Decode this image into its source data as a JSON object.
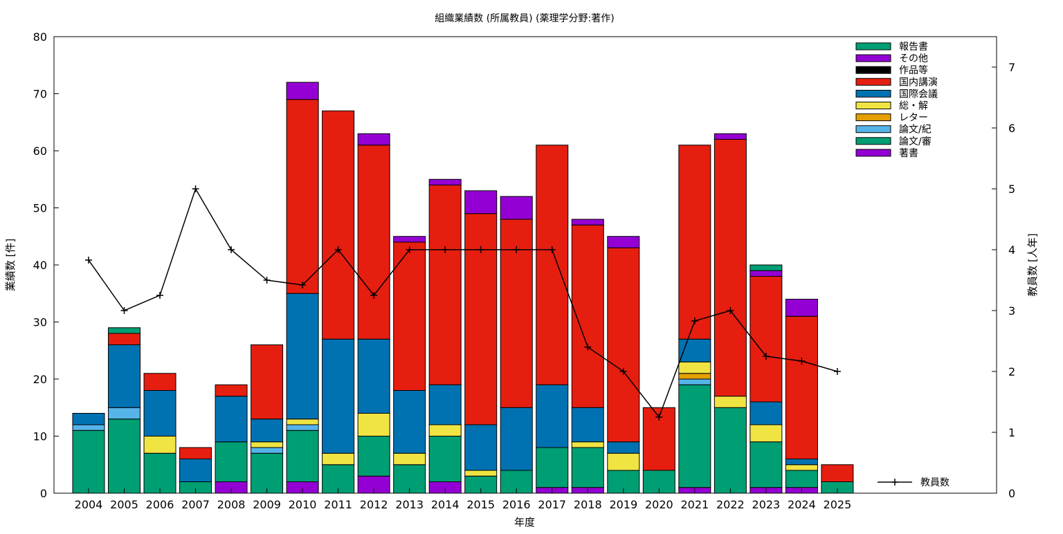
{
  "chart_data": {
    "type": "bar",
    "stacked": true,
    "title": "組織業績数 (所属教員) (薬理学分野:著作)",
    "xlabel": "年度",
    "ylabel": "業績数 [件]",
    "y2label": "教員数 [人年]",
    "ylim": [
      0,
      80
    ],
    "y2lim": [
      0,
      7.5
    ],
    "yticks": [
      0,
      10,
      20,
      30,
      40,
      50,
      60,
      70,
      80
    ],
    "y2ticks": [
      0,
      1,
      2,
      3,
      4,
      5,
      6,
      7
    ],
    "grid": false,
    "legend_position": "top-right",
    "categories": [
      "2004",
      "2005",
      "2006",
      "2007",
      "2008",
      "2009",
      "2010",
      "2011",
      "2012",
      "2013",
      "2014",
      "2015",
      "2016",
      "2017",
      "2018",
      "2019",
      "2020",
      "2021",
      "2022",
      "2023",
      "2024",
      "2025"
    ],
    "series": [
      {
        "name": "著書",
        "color": "#9400d3",
        "values": [
          0,
          0,
          0,
          0,
          2,
          0,
          2,
          0,
          3,
          0,
          2,
          0,
          0,
          1,
          1,
          0,
          0,
          1,
          0,
          1,
          1,
          0
        ]
      },
      {
        "name": "論文/審",
        "color": "#009e73",
        "values": [
          11,
          13,
          7,
          2,
          7,
          7,
          9,
          5,
          7,
          5,
          8,
          3,
          4,
          7,
          7,
          4,
          4,
          18,
          15,
          8,
          3,
          2
        ]
      },
      {
        "name": "論文/紀",
        "color": "#56b4e9",
        "values": [
          1,
          2,
          0,
          0,
          0,
          1,
          1,
          0,
          0,
          0,
          0,
          0,
          0,
          0,
          0,
          0,
          0,
          1,
          0,
          0,
          0,
          0
        ]
      },
      {
        "name": "レター",
        "color": "#e69f00",
        "values": [
          0,
          0,
          0,
          0,
          0,
          0,
          0,
          0,
          0,
          0,
          0,
          0,
          0,
          0,
          0,
          0,
          0,
          1,
          0,
          0,
          0,
          0
        ]
      },
      {
        "name": "総・解",
        "color": "#f0e442",
        "values": [
          0,
          0,
          3,
          0,
          0,
          1,
          1,
          2,
          4,
          2,
          2,
          1,
          0,
          0,
          1,
          3,
          0,
          2,
          2,
          3,
          1,
          0
        ]
      },
      {
        "name": "国際会議",
        "color": "#0072b2",
        "values": [
          2,
          11,
          8,
          4,
          8,
          4,
          22,
          20,
          13,
          11,
          7,
          8,
          11,
          11,
          6,
          2,
          0,
          4,
          0,
          4,
          1,
          0
        ]
      },
      {
        "name": "国内講演",
        "color": "#e51e10",
        "values": [
          0,
          2,
          3,
          2,
          2,
          13,
          34,
          40,
          34,
          26,
          35,
          37,
          33,
          42,
          32,
          34,
          11,
          34,
          45,
          22,
          25,
          3
        ]
      },
      {
        "name": "作品等",
        "color": "#000000",
        "values": [
          0,
          0,
          0,
          0,
          0,
          0,
          0,
          0,
          0,
          0,
          0,
          0,
          0,
          0,
          0,
          0,
          0,
          0,
          0,
          0,
          0,
          0
        ]
      },
      {
        "name": "その他",
        "color": "#9400d3",
        "values": [
          0,
          0,
          0,
          0,
          0,
          0,
          3,
          0,
          2,
          1,
          1,
          4,
          4,
          0,
          1,
          2,
          0,
          0,
          1,
          1,
          3,
          0
        ]
      },
      {
        "name": "報告書",
        "color": "#009e73",
        "values": [
          0,
          1,
          0,
          0,
          0,
          0,
          0,
          0,
          0,
          0,
          0,
          0,
          0,
          0,
          0,
          0,
          0,
          0,
          0,
          1,
          0,
          0
        ]
      }
    ],
    "line_series": {
      "name": "教員数",
      "axis": "y2",
      "color": "#000000",
      "values": [
        3.83,
        3.0,
        3.25,
        5.0,
        4.0,
        3.5,
        3.42,
        4.0,
        3.25,
        4.0,
        4.0,
        4.0,
        4.0,
        4.0,
        2.4,
        2.0,
        1.25,
        2.83,
        3.0,
        2.25,
        2.17,
        2.0
      ]
    }
  }
}
